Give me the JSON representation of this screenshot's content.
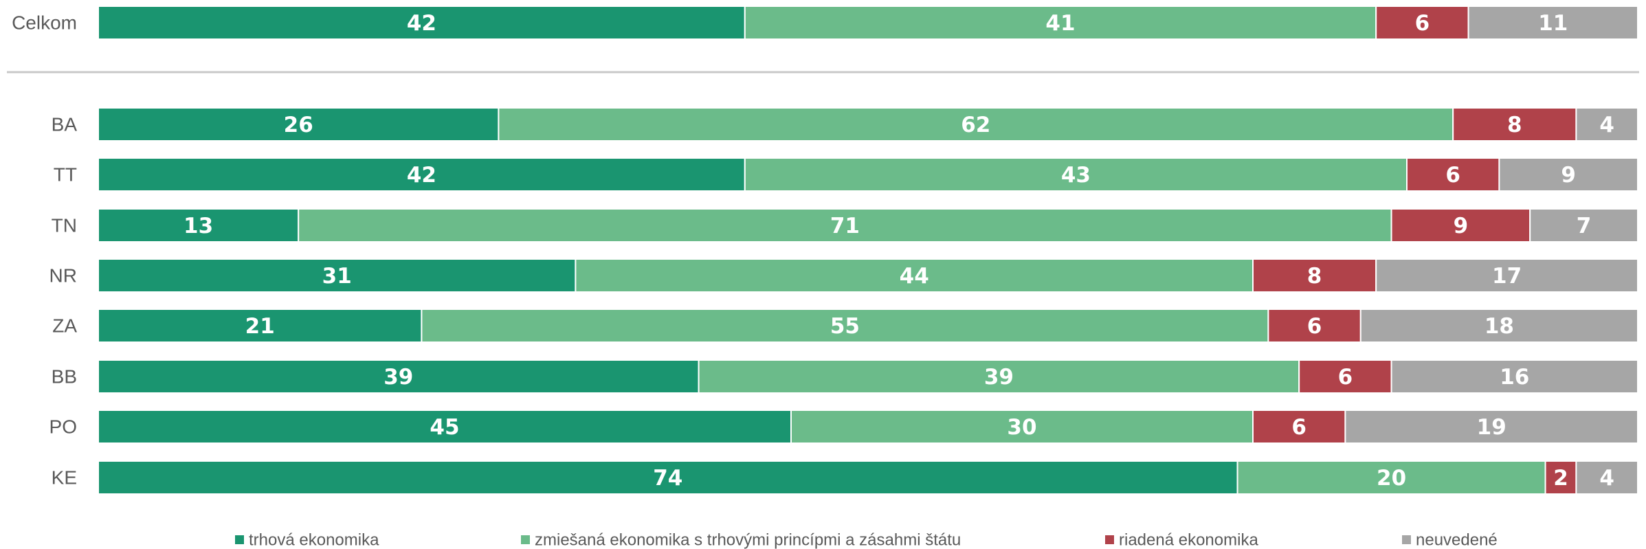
{
  "chart_data": {
    "type": "bar",
    "orientation": "horizontal",
    "stacked": true,
    "percent_stacked": true,
    "categories": [
      "Celkom",
      "BA",
      "TT",
      "TN",
      "NR",
      "ZA",
      "BB",
      "PO",
      "KE"
    ],
    "series": [
      {
        "name": "trhová ekonomika",
        "color": "#1a9570",
        "values": [
          42,
          26,
          42,
          13,
          31,
          21,
          39,
          45,
          74
        ]
      },
      {
        "name": "zmiešaná ekonomika s trhovými princípmi a zásahmi štátu",
        "color": "#6bbb8a",
        "values": [
          41,
          62,
          43,
          71,
          44,
          55,
          39,
          30,
          20
        ]
      },
      {
        "name": "riadená ekonomika",
        "color": "#b0424a",
        "values": [
          6,
          8,
          6,
          9,
          8,
          6,
          6,
          6,
          2
        ]
      },
      {
        "name": "neuvedené",
        "color": "#a6a6a6",
        "values": [
          11,
          4,
          9,
          7,
          17,
          18,
          16,
          19,
          4
        ]
      }
    ],
    "separator_after_category": "Celkom",
    "legend_position": "bottom",
    "data_labels": true,
    "grid": false,
    "title": "",
    "xlabel": "",
    "ylabel": ""
  }
}
